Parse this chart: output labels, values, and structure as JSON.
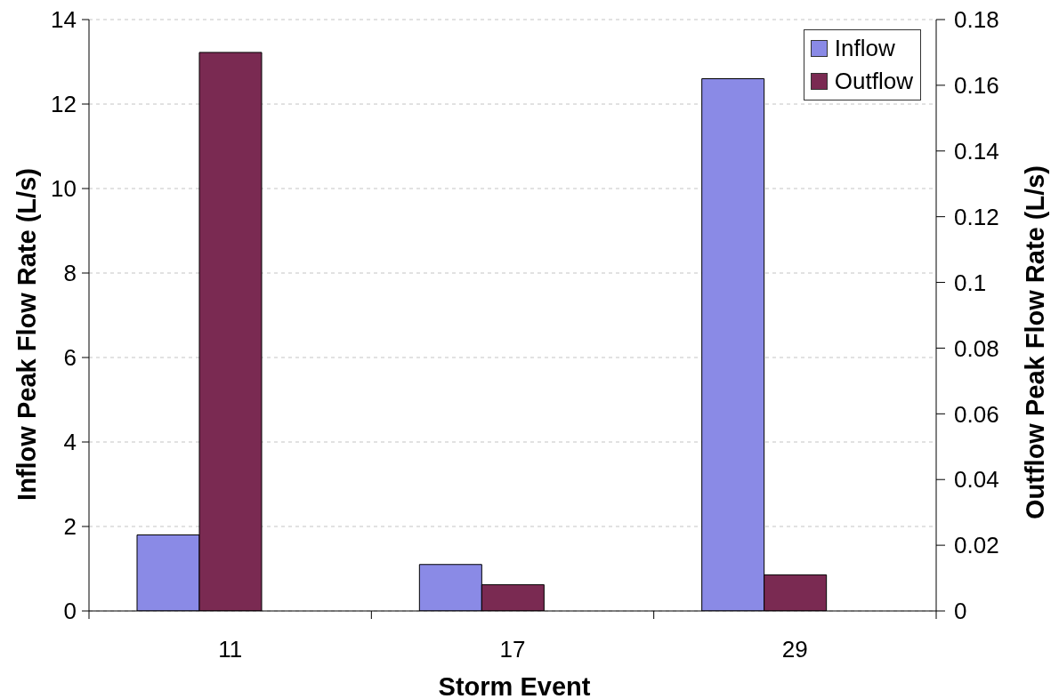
{
  "chart_data": {
    "type": "bar",
    "xlabel": "Storm Event",
    "ylabel": "Inflow Peak Flow Rate (L/s)",
    "y2label": "Outflow Peak Flow Rate (L/s)",
    "categories": [
      "11",
      "17",
      "29"
    ],
    "series": [
      {
        "name": "Inflow",
        "color": "#8a8ae6",
        "values": [
          1.8,
          1.1,
          12.6
        ]
      },
      {
        "name": "Outflow",
        "color": "#7a2a52",
        "values": [
          0.17,
          0.008,
          0.011
        ],
        "axis": "y2"
      }
    ],
    "ylim": [
      0,
      14
    ],
    "yticks": [
      0,
      2,
      4,
      6,
      8,
      10,
      12,
      14
    ],
    "y2lim": [
      0,
      0.18
    ],
    "y2ticks": [
      0,
      0.02,
      0.04,
      0.06,
      0.08,
      0.1,
      0.12,
      0.14,
      0.16,
      0.18
    ],
    "grid": "y",
    "legend": "top right"
  }
}
